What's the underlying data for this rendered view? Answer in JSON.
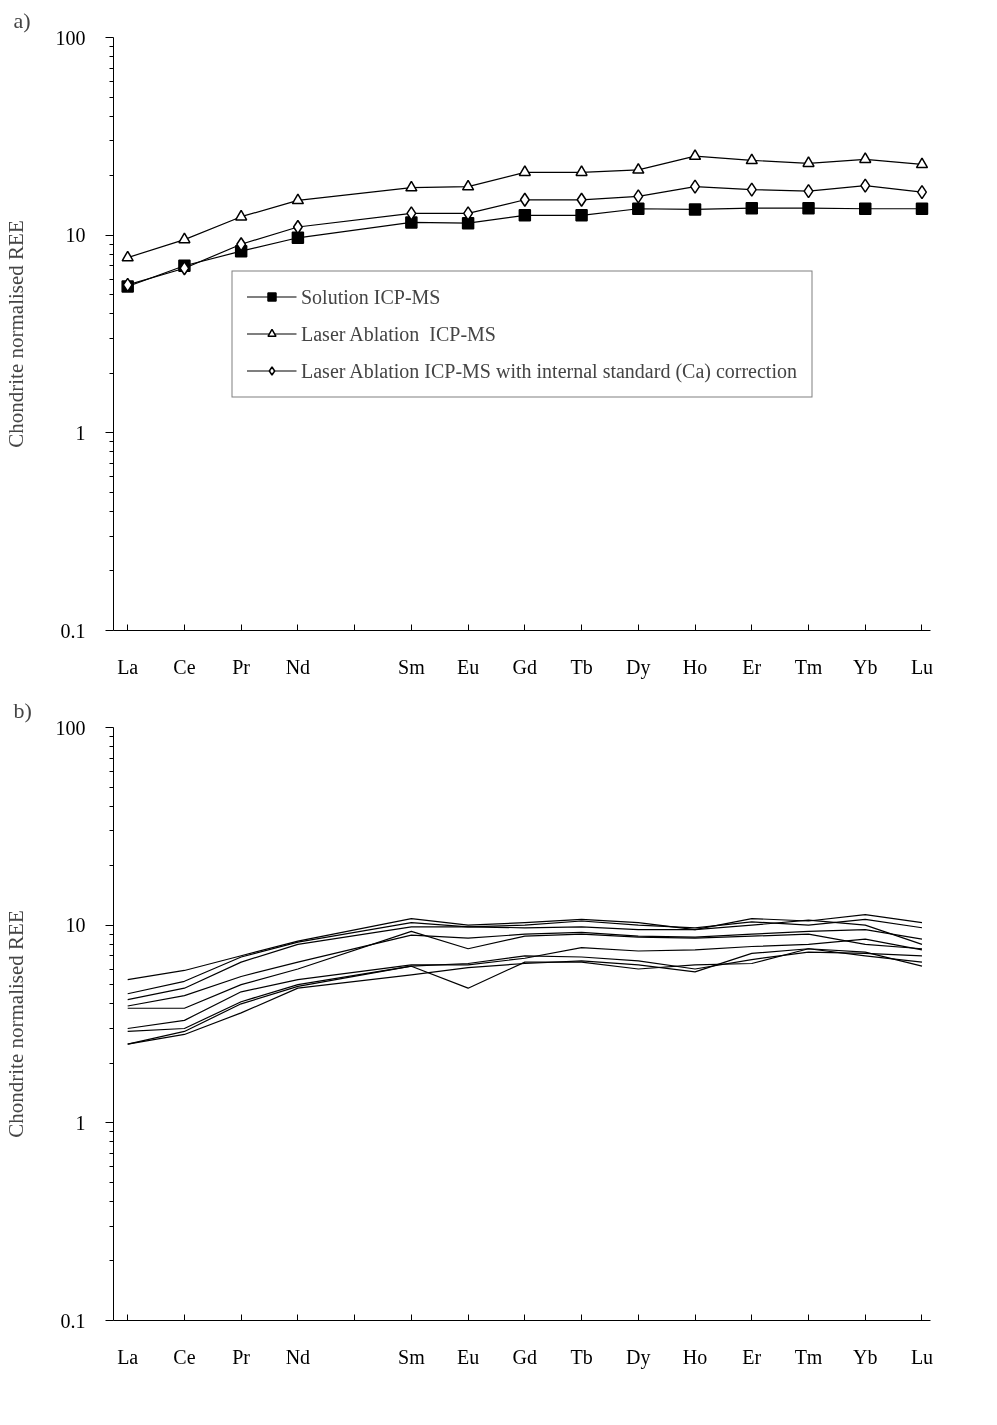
{
  "chart_data": [
    {
      "type": "line",
      "annotations": [
        "a)"
      ],
      "ylabel": "Chondrite normalised REE",
      "log": "y",
      "ylim": [
        0.1,
        100
      ],
      "yticks": [
        0.1,
        1,
        10,
        100
      ],
      "grid": false,
      "legend": "center",
      "categories": [
        "La",
        "Ce",
        "Pr",
        "Nd",
        null,
        "Sm",
        "Eu",
        "Gd",
        "Tb",
        "Dy",
        "Ho",
        "Er",
        "Tm",
        "Yb",
        "Lu"
      ],
      "series": [
        {
          "name": "Solution ICP-MS",
          "color": "#000000",
          "marker": "square",
          "values": [
            5.5,
            7.0,
            8.3,
            9.7,
            null,
            11.6,
            11.5,
            12.6,
            12.6,
            13.6,
            13.5,
            13.7,
            13.7,
            13.6,
            13.6
          ]
        },
        {
          "name": "Laser Ablation  ICP-MS",
          "color": "#000000",
          "marker": "triangle",
          "values": [
            7.7,
            9.5,
            12.4,
            15.0,
            null,
            17.4,
            17.6,
            20.8,
            20.8,
            21.4,
            25.1,
            23.9,
            23.1,
            24.2,
            22.8
          ]
        },
        {
          "name": "Laser Ablation ICP-MS with internal standard (Ca) correction",
          "color": "#000000",
          "marker": "diamond",
          "values": [
            5.6,
            6.8,
            9.0,
            11.0,
            null,
            12.9,
            12.9,
            15.1,
            15.1,
            15.7,
            17.6,
            17.0,
            16.7,
            17.8,
            16.5
          ]
        }
      ]
    },
    {
      "type": "line",
      "annotations": [
        "b)"
      ],
      "ylabel": "Chondrite normalised REE",
      "log": "y",
      "ylim": [
        0.1,
        100
      ],
      "yticks": [
        0.1,
        1,
        10,
        100
      ],
      "grid": false,
      "categories": [
        "La",
        "Ce",
        "Pr",
        "Nd",
        null,
        "Sm",
        "Eu",
        "Gd",
        "Tb",
        "Dy",
        "Ho",
        "Er",
        "Tm",
        "Yb",
        "Lu"
      ],
      "series": [
        {
          "color": "#000000",
          "values": [
            5.3,
            5.9,
            7.0,
            8.3,
            null,
            10.8,
            10.0,
            10.3,
            10.7,
            10.3,
            9.5,
            10.8,
            10.5,
            11.3,
            10.3
          ]
        },
        {
          "color": "#000000",
          "values": [
            4.5,
            5.2,
            6.9,
            8.2,
            null,
            10.3,
            9.8,
            10.0,
            10.5,
            10.0,
            9.7,
            10.4,
            10.0,
            10.7,
            9.7
          ]
        },
        {
          "color": "#000000",
          "values": [
            4.2,
            4.8,
            6.5,
            8.0,
            null,
            9.8,
            9.8,
            9.7,
            9.8,
            9.5,
            9.5,
            10.0,
            10.6,
            10.0,
            8.0
          ]
        },
        {
          "color": "#000000",
          "values": [
            3.9,
            4.4,
            5.5,
            6.5,
            null,
            8.9,
            8.6,
            9.0,
            9.2,
            8.8,
            8.7,
            9.0,
            9.3,
            9.5,
            8.5
          ]
        },
        {
          "color": "#000000",
          "values": [
            3.8,
            3.8,
            5.0,
            6.0,
            null,
            9.3,
            7.6,
            8.8,
            9.0,
            8.7,
            8.6,
            8.8,
            9.0,
            8.0,
            7.6
          ]
        },
        {
          "color": "#000000",
          "values": [
            3.0,
            3.3,
            4.6,
            5.3,
            null,
            6.3,
            6.3,
            6.8,
            7.7,
            7.4,
            7.5,
            7.8,
            8.0,
            8.5,
            7.5
          ]
        },
        {
          "color": "#000000",
          "values": [
            2.9,
            3.0,
            4.1,
            5.0,
            null,
            6.2,
            6.4,
            7.0,
            6.9,
            6.6,
            6.0,
            6.7,
            7.3,
            7.2,
            7.0
          ]
        },
        {
          "color": "#000000",
          "values": [
            2.5,
            2.9,
            4.0,
            4.9,
            null,
            6.2,
            4.8,
            6.5,
            6.5,
            6.0,
            6.3,
            6.4,
            7.6,
            7.3,
            6.2
          ]
        },
        {
          "color": "#000000",
          "values": [
            2.5,
            2.8,
            3.6,
            4.8,
            null,
            5.6,
            6.1,
            6.4,
            6.6,
            6.3,
            5.8,
            7.2,
            7.6,
            7.0,
            6.5
          ]
        }
      ]
    }
  ]
}
